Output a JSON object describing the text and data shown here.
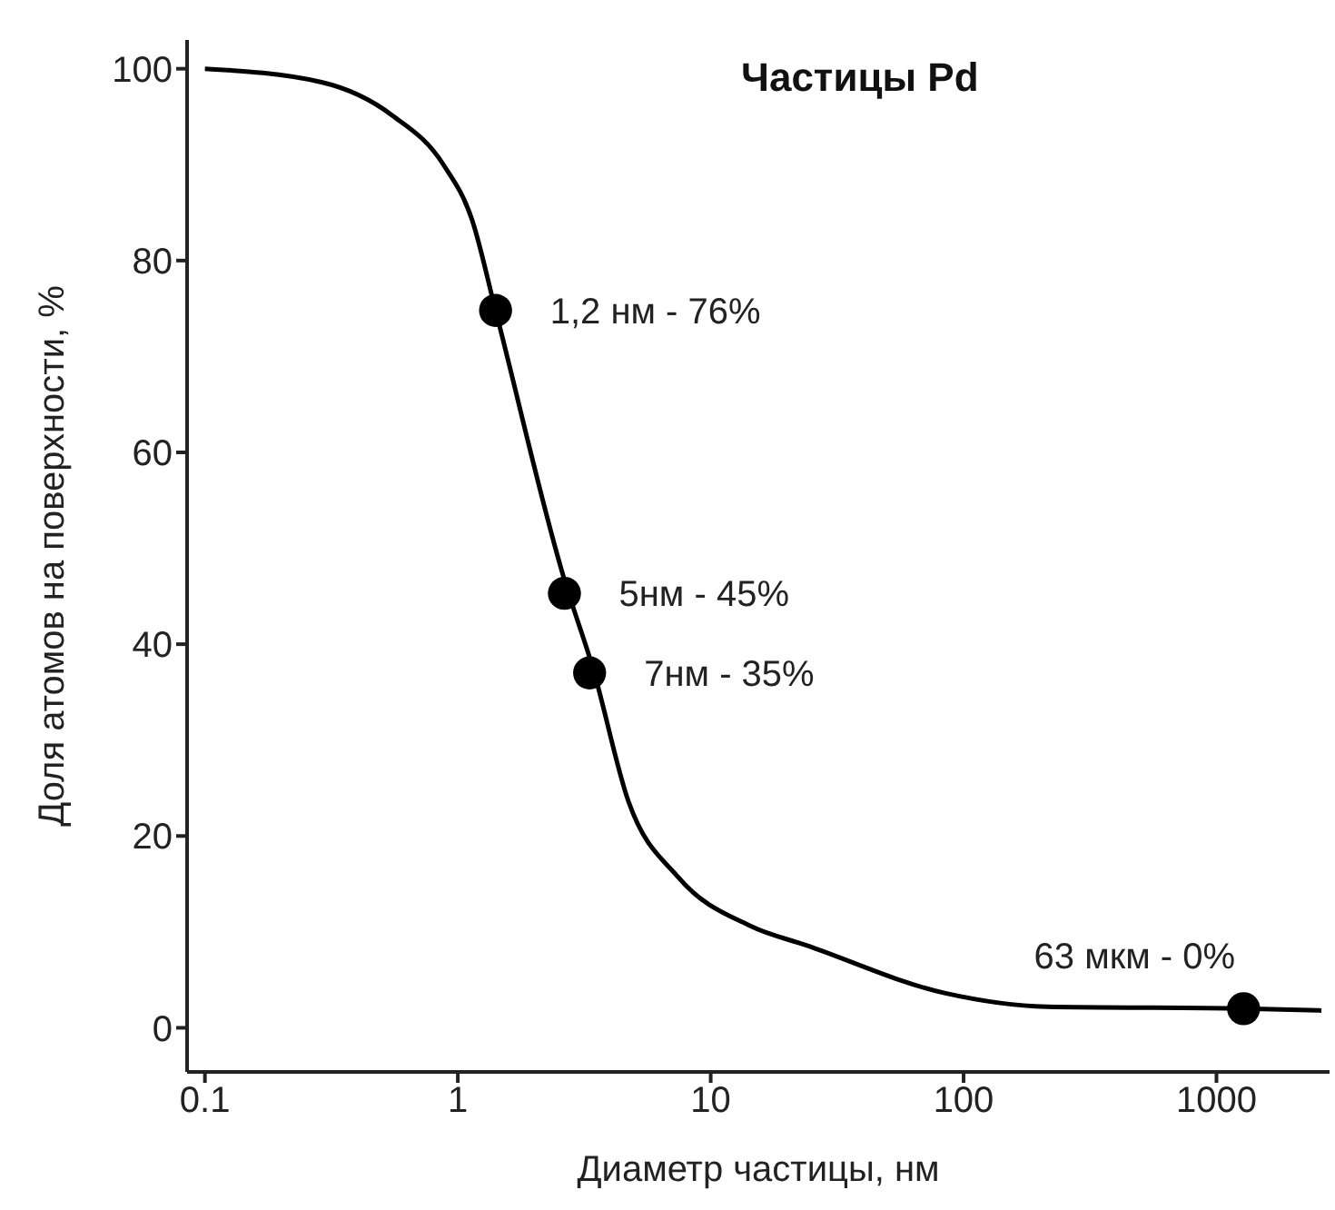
{
  "chart_data": {
    "type": "line",
    "title": "Частицы Pd",
    "xlabel": "Диаметр частицы, нм",
    "ylabel": "Доля атомов на поверхности, %",
    "log": "x",
    "xlim": [
      0.085,
      2800
    ],
    "xticks": [
      0.1,
      1,
      10,
      100,
      1000
    ],
    "ylim": [
      -4.6,
      103
    ],
    "yticks": [
      0,
      20,
      40,
      60,
      80,
      100
    ],
    "grid": false,
    "series": [
      {
        "color": "#000000",
        "marker": "none",
        "line_style": "solid",
        "x": [
          0.1,
          0.289,
          0.553,
          0.877,
          1.14,
          1.41,
          2.64,
          3.43,
          4.73,
          7.44,
          14.4,
          23.9,
          84.8,
          213,
          1280,
          2600
        ],
        "values": [
          100,
          98.6,
          95.1,
          90.0,
          84.2,
          74.8,
          46.7,
          37.4,
          23.6,
          15.7,
          10.6,
          8.6,
          3.6,
          2.2,
          2.0,
          1.8
        ]
      },
      {
        "type": "scatter",
        "color": "#000000",
        "marker": "circle",
        "x": [
          1.41,
          2.64,
          3.32,
          1280
        ],
        "values": [
          74.8,
          45.3,
          37.0,
          2.0
        ]
      }
    ],
    "annotations": [
      {
        "text": "1,2 нм - 76%",
        "x": 1.41,
        "y": 74.8
      },
      {
        "text": "5нм - 45%",
        "x": 2.64,
        "y": 45.3
      },
      {
        "text": "7нм - 35%",
        "x": 3.32,
        "y": 37.0
      },
      {
        "text": "63 мкм - 0%",
        "x": 1280,
        "y": 2.0
      }
    ]
  }
}
